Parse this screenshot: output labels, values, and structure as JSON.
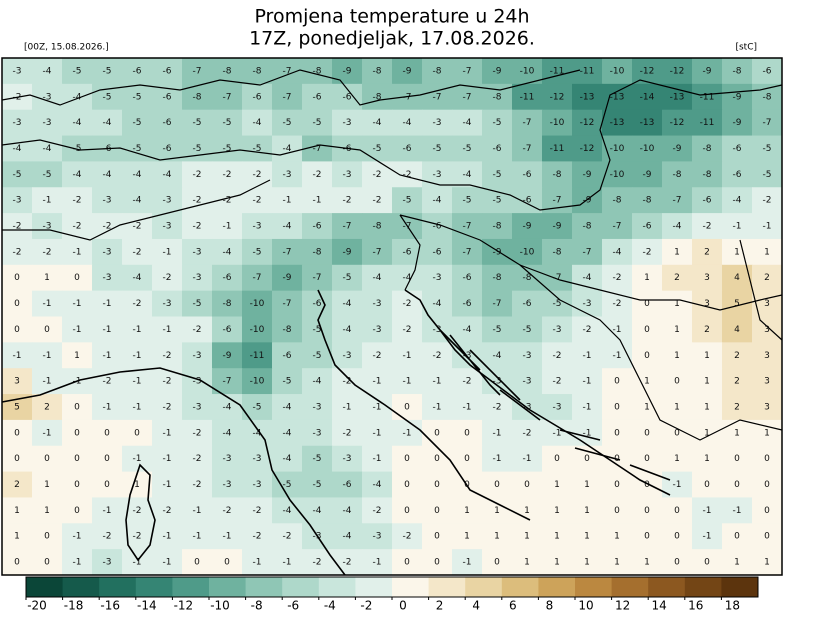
{
  "header": {
    "title": "Promjena temperature u 24h",
    "subtitle": "17Z, ponedjeljak, 17.08.2026.",
    "run_label": "[00Z, 15.08.2026.]",
    "unit_label": "[stC]"
  },
  "colorbar": {
    "lim": [
      -20,
      20
    ],
    "ticks": [
      -20,
      -18,
      -16,
      -14,
      -12,
      -10,
      -8,
      -6,
      -4,
      -2,
      0,
      2,
      4,
      6,
      8,
      10,
      12,
      14,
      16,
      18
    ],
    "colors": [
      "#0b4638",
      "#155a4b",
      "#22705f",
      "#358574",
      "#4f9b89",
      "#6fb29f",
      "#8fc6b5",
      "#aed8ca",
      "#c9e6dc",
      "#e1f0ea",
      "#fbf6ea",
      "#f4e7c9",
      "#e9d4a3",
      "#dcbd7c",
      "#cda35a",
      "#bb8840",
      "#a56f2e",
      "#8c5820",
      "#734515",
      "#5c340d"
    ]
  },
  "grid": {
    "rows": [
      [
        -3,
        -4,
        -5,
        -5,
        -6,
        -6,
        -7,
        -8,
        -8,
        -7,
        -8,
        -9,
        -8,
        -9,
        -8,
        -7,
        -9,
        -10,
        -11,
        -11,
        -10,
        -12,
        -12,
        -9,
        -8,
        -6
      ],
      [
        -2,
        -3,
        -4,
        -5,
        -5,
        -6,
        -8,
        -7,
        -6,
        -7,
        -6,
        -6,
        -8,
        -7,
        -7,
        -7,
        -8,
        -11,
        -12,
        -13,
        -13,
        -14,
        -13,
        -11,
        -9,
        -8
      ],
      [
        -3,
        -3,
        -4,
        -4,
        -5,
        -6,
        -5,
        -5,
        -4,
        -5,
        -5,
        -3,
        -4,
        -4,
        -3,
        -4,
        -5,
        -7,
        -10,
        -12,
        -13,
        -13,
        -12,
        -11,
        -9,
        -7
      ],
      [
        -4,
        -4,
        -5,
        -6,
        -5,
        -6,
        -5,
        -5,
        -5,
        -4,
        -7,
        -6,
        -5,
        -6,
        -5,
        -5,
        -6,
        -7,
        -11,
        -12,
        -10,
        -10,
        -9,
        -8,
        -6,
        -5
      ],
      [
        -5,
        -5,
        -4,
        -4,
        -4,
        -4,
        -2,
        -2,
        -2,
        -3,
        -2,
        -3,
        -2,
        -2,
        -3,
        -4,
        -5,
        -6,
        -8,
        -9,
        -10,
        -9,
        -8,
        -8,
        -6,
        -5
      ],
      [
        -3,
        -1,
        -2,
        -3,
        -4,
        -3,
        -2,
        -2,
        -2,
        -1,
        -1,
        -2,
        -2,
        -5,
        -4,
        -5,
        -5,
        -6,
        -7,
        -9,
        -8,
        -8,
        -7,
        -6,
        -4,
        -2
      ],
      [
        -2,
        -3,
        -2,
        -2,
        -2,
        -3,
        -2,
        -1,
        -3,
        -4,
        -6,
        -7,
        -8,
        -7,
        -6,
        -7,
        -8,
        -9,
        -9,
        -8,
        -7,
        -6,
        -4,
        -2,
        -1,
        -1
      ],
      [
        -2,
        -2,
        -1,
        -3,
        -2,
        -1,
        -3,
        -4,
        -5,
        -7,
        -8,
        -9,
        -7,
        -6,
        -6,
        -7,
        -9,
        -10,
        -8,
        -7,
        -4,
        -2,
        1,
        2,
        1,
        1
      ],
      [
        0,
        1,
        0,
        -3,
        -4,
        -2,
        -3,
        -6,
        -7,
        -9,
        -7,
        -5,
        -4,
        -4,
        -3,
        -6,
        -8,
        -8,
        -7,
        -4,
        -2,
        1,
        2,
        3,
        4,
        2
      ],
      [
        0,
        -1,
        -1,
        -1,
        -2,
        -3,
        -5,
        -8,
        -10,
        -7,
        -6,
        -4,
        -3,
        -2,
        -4,
        -6,
        -7,
        -6,
        -5,
        -3,
        -2,
        0,
        1,
        3,
        5,
        3
      ],
      [
        0,
        0,
        -1,
        -1,
        -1,
        -1,
        -2,
        -6,
        -10,
        -8,
        -5,
        -4,
        -3,
        -2,
        -3,
        -4,
        -5,
        -5,
        -3,
        -2,
        -1,
        0,
        1,
        2,
        4,
        3
      ],
      [
        -1,
        -1,
        1,
        -1,
        -1,
        -2,
        -3,
        -9,
        -11,
        -6,
        -5,
        -3,
        -2,
        -1,
        -2,
        -3,
        -4,
        -3,
        -2,
        -1,
        -1,
        0,
        1,
        1,
        2,
        3
      ],
      [
        3,
        -1,
        -1,
        -2,
        -1,
        -2,
        -3,
        -7,
        -10,
        -5,
        -4,
        -2,
        -1,
        -1,
        -1,
        -2,
        -3,
        -3,
        -2,
        -1,
        0,
        1,
        0,
        1,
        2,
        3
      ],
      [
        5,
        2,
        0,
        -1,
        -1,
        -2,
        -3,
        -4,
        -5,
        -4,
        -3,
        -1,
        -1,
        0,
        -1,
        -1,
        -2,
        -3,
        -3,
        -1,
        0,
        1,
        1,
        1,
        2,
        3
      ],
      [
        0,
        -1,
        0,
        0,
        0,
        -1,
        -2,
        -4,
        -4,
        -4,
        -3,
        -2,
        -1,
        -1,
        0,
        0,
        -1,
        -2,
        -1,
        -1,
        0,
        0,
        0,
        1,
        1,
        1
      ],
      [
        0,
        0,
        0,
        0,
        -1,
        -1,
        -2,
        -3,
        -3,
        -4,
        -5,
        -3,
        -1,
        0,
        0,
        0,
        -1,
        -1,
        0,
        0,
        0,
        0,
        1,
        1,
        0,
        0
      ],
      [
        2,
        1,
        0,
        0,
        1,
        -1,
        -2,
        -3,
        -3,
        -5,
        -5,
        -6,
        -4,
        0,
        0,
        0,
        0,
        0,
        1,
        1,
        0,
        0,
        -1,
        0,
        0,
        0
      ],
      [
        1,
        1,
        0,
        -1,
        -2,
        -2,
        -1,
        -2,
        -2,
        -4,
        -4,
        -4,
        -2,
        0,
        0,
        1,
        1,
        1,
        1,
        1,
        0,
        0,
        0,
        -1,
        -1,
        0
      ],
      [
        1,
        0,
        -1,
        -2,
        -2,
        -1,
        -1,
        -1,
        -2,
        -2,
        -3,
        -4,
        -3,
        -2,
        0,
        1,
        1,
        1,
        1,
        1,
        1,
        0,
        0,
        -1,
        0,
        0
      ],
      [
        0,
        0,
        -1,
        -3,
        -1,
        -1,
        0,
        0,
        -1,
        -1,
        -2,
        -2,
        -1,
        0,
        0,
        -1,
        0,
        1,
        1,
        1,
        1,
        1,
        0,
        0,
        1,
        1
      ]
    ]
  }
}
